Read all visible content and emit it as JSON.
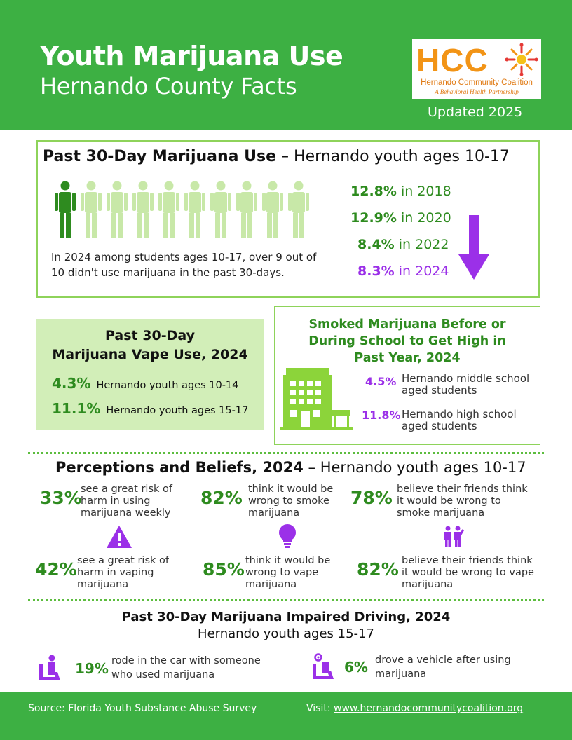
{
  "header": {
    "title": "Youth Marijuana Use",
    "subtitle": "Hernando County Facts",
    "updated": "Updated 2025",
    "logo": {
      "abbr": "HCC",
      "org": "Hernando Community Coalition",
      "tagline": "A Behavioral Health Partnership"
    }
  },
  "past30": {
    "title_bold": "Past 30-Day Marijuana Use",
    "title_rest": " – Hernando youth ages 10-17",
    "note": "In 2024 among students ages 10-17, over 9 out of 10 didn't use marijuana in the past 30-days.",
    "people_total": 10,
    "people_highlighted": 1,
    "trend": [
      {
        "value": "12.8%",
        "label": " in 2018"
      },
      {
        "value": "12.9%",
        "label": " in 2020"
      },
      {
        "value": "8.4%",
        "label": " in 2022"
      },
      {
        "value": "8.3%",
        "label": " in 2024"
      }
    ]
  },
  "vape": {
    "title_line1": "Past 30-Day",
    "title_line2": "Marijuana Vape Use, 2024",
    "rows": [
      {
        "value": "4.3%",
        "label": "Hernando youth ages 10-14"
      },
      {
        "value": "11.1%",
        "label": "Hernando youth ages 15-17"
      }
    ]
  },
  "school": {
    "title_line1": "Smoked Marijuana Before or",
    "title_line2": "During School to Get High in",
    "title_line3": "Past Year, 2024",
    "rows": [
      {
        "value": "4.5%",
        "label": "Hernando middle school aged students"
      },
      {
        "value": "11.8%",
        "label": "Hernando high school aged students"
      }
    ]
  },
  "perceptions": {
    "title_bold": "Perceptions and Beliefs, 2024",
    "title_rest": " – Hernando youth ages 10-17",
    "items": [
      {
        "value": "33%",
        "label": "see a great risk of harm in using marijuana weekly"
      },
      {
        "value": "82%",
        "label": "think it would be wrong to smoke marijuana"
      },
      {
        "value": "78%",
        "label": "believe their friends think it would be wrong to smoke marijuana"
      },
      {
        "value": "42%",
        "label": "see a great risk of harm in vaping marijuana"
      },
      {
        "value": "85%",
        "label": "think it would be wrong to vape marijuana"
      },
      {
        "value": "82%",
        "label": "believe their friends think it would be wrong to vape marijuana"
      }
    ],
    "icons": [
      "warning-icon",
      "lightbulb-icon",
      "friends-icon"
    ]
  },
  "driving": {
    "title": "Past 30-Day Marijuana Impaired Driving, 2024",
    "subtitle": "Hernando youth ages 15-17",
    "items": [
      {
        "value": "19%",
        "label_line1": "rode in the car with someone",
        "label_line2": "who used marijuana",
        "icon": "passenger-seat-icon"
      },
      {
        "value": "6%",
        "label_line1": "drove a vehicle after using",
        "label_line2": "marijuana",
        "icon": "driver-icon"
      }
    ]
  },
  "footer": {
    "source": "Source: Florida Youth Substance Abuse Survey",
    "visit_label": "Visit: ",
    "url": "www.hernandocommunitycoalition.org"
  },
  "colors": {
    "brand_green": "#3db043",
    "stat_green": "#2e8b1f",
    "accent_purple": "#9b30e8",
    "light_green_panel": "#d2eeb8",
    "logo_orange": "#f29416"
  }
}
